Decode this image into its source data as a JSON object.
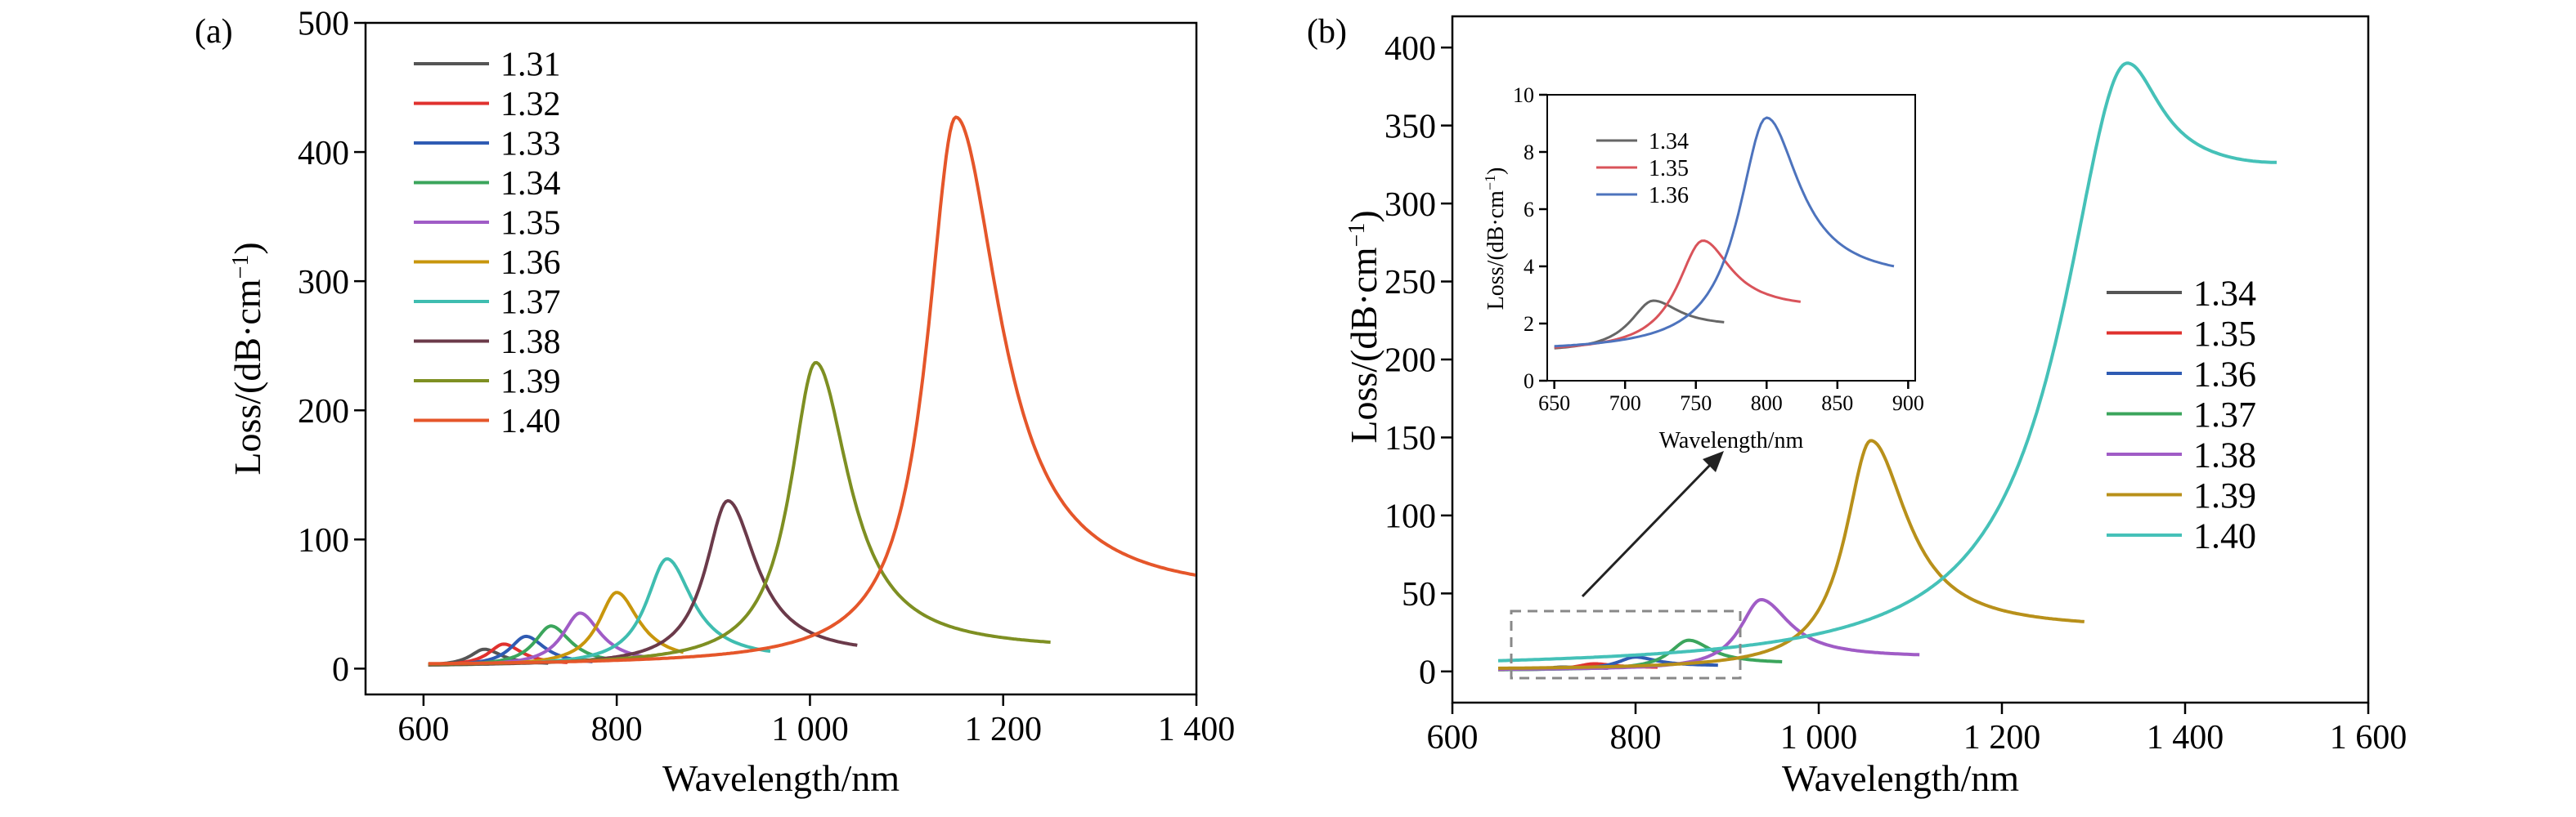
{
  "chart_data": [
    {
      "panel_label": "(a)",
      "type": "line",
      "xlabel": "Wavelength/nm",
      "ylabel_main": "Loss/(dB·cm",
      "ylabel_sup": "−1",
      "ylabel_close": ")",
      "xlim": [
        540,
        1400
      ],
      "ylim": [
        -20,
        500
      ],
      "xticks": [
        600,
        800,
        1000,
        1200,
        1400
      ],
      "xtick_labels": [
        "600",
        "800",
        "1 000",
        "1 200",
        "1 400"
      ],
      "yticks": [
        0,
        100,
        200,
        300,
        400,
        500
      ],
      "ytick_labels": [
        "0",
        "100",
        "200",
        "300",
        "400",
        "500"
      ],
      "legend_position": "top-left",
      "series": [
        {
          "name": "1.31",
          "color": "#555555",
          "peak_x": 663,
          "peak_y": 15,
          "x_start": 605,
          "x_end": 730,
          "base": 2,
          "width_left": 18,
          "width_right": 22,
          "tail": 3
        },
        {
          "name": "1.32",
          "color": "#e0312e",
          "peak_x": 683,
          "peak_y": 19,
          "x_start": 605,
          "x_end": 750,
          "base": 2,
          "width_left": 19,
          "width_right": 23,
          "tail": 3
        },
        {
          "name": "1.33",
          "color": "#2f5bb3",
          "peak_x": 706,
          "peak_y": 25,
          "x_start": 605,
          "x_end": 775,
          "base": 2,
          "width_left": 20,
          "width_right": 24,
          "tail": 3
        },
        {
          "name": "1.34",
          "color": "#3ba55c",
          "peak_x": 732,
          "peak_y": 33,
          "x_start": 605,
          "x_end": 800,
          "base": 2,
          "width_left": 21,
          "width_right": 25,
          "tail": 3
        },
        {
          "name": "1.35",
          "color": "#a05cc6",
          "peak_x": 762,
          "peak_y": 43,
          "x_start": 605,
          "x_end": 830,
          "base": 2,
          "width_left": 22,
          "width_right": 26,
          "tail": 4
        },
        {
          "name": "1.36",
          "color": "#c8960c",
          "peak_x": 800,
          "peak_y": 59,
          "x_start": 605,
          "x_end": 870,
          "base": 2,
          "width_left": 23,
          "width_right": 28,
          "tail": 5
        },
        {
          "name": "1.37",
          "color": "#3fbdb0",
          "peak_x": 852,
          "peak_y": 85,
          "x_start": 605,
          "x_end": 960,
          "base": 2,
          "width_left": 26,
          "width_right": 32,
          "tail": 7
        },
        {
          "name": "1.38",
          "color": "#6b3a4a",
          "peak_x": 915,
          "peak_y": 130,
          "x_start": 605,
          "x_end": 1050,
          "base": 2,
          "width_left": 28,
          "width_right": 36,
          "tail": 10
        },
        {
          "name": "1.39",
          "color": "#7e8f22",
          "peak_x": 1006,
          "peak_y": 237,
          "x_start": 605,
          "x_end": 1250,
          "base": 2,
          "width_left": 32,
          "width_right": 42,
          "tail": 14
        },
        {
          "name": "1.40",
          "color": "#e5562a",
          "peak_x": 1151,
          "peak_y": 427,
          "x_start": 605,
          "x_end": 1400,
          "base": 2,
          "width_left": 36,
          "width_right": 55,
          "tail": 55
        }
      ]
    },
    {
      "panel_label": "(b)",
      "type": "line",
      "xlabel": "Wavelength/nm",
      "ylabel_main": "Loss/(dB·cm",
      "ylabel_sup": "−1",
      "ylabel_close": ")",
      "xlim": [
        600,
        1600
      ],
      "ylim": [
        -20,
        420
      ],
      "xticks": [
        600,
        800,
        1000,
        1200,
        1400,
        1600
      ],
      "xtick_labels": [
        "600",
        "800",
        "1 000",
        "1 200",
        "1 400",
        "1 600"
      ],
      "yticks": [
        0,
        50,
        100,
        150,
        200,
        250,
        300,
        350,
        400
      ],
      "ytick_labels": [
        "0",
        "50",
        "100",
        "150",
        "200",
        "250",
        "300",
        "350",
        "400"
      ],
      "legend_position": "right",
      "series": [
        {
          "name": "1.34",
          "color": "#555555",
          "peak_x": 720,
          "peak_y": 2.8,
          "x_start": 650,
          "x_end": 770,
          "base": 1,
          "width_left": 20,
          "width_right": 22,
          "tail": 1.9
        },
        {
          "name": "1.35",
          "color": "#e0312e",
          "peak_x": 755,
          "peak_y": 4.9,
          "x_start": 650,
          "x_end": 825,
          "base": 1,
          "width_left": 22,
          "width_right": 24,
          "tail": 2.5
        },
        {
          "name": "1.36",
          "color": "#2f5bb3",
          "peak_x": 800,
          "peak_y": 9.2,
          "x_start": 650,
          "x_end": 890,
          "base": 1,
          "width_left": 24,
          "width_right": 28,
          "tail": 3.5
        },
        {
          "name": "1.37",
          "color": "#3ba55c",
          "peak_x": 858,
          "peak_y": 20,
          "x_start": 650,
          "x_end": 960,
          "base": 1,
          "width_left": 25,
          "width_right": 30,
          "tail": 5
        },
        {
          "name": "1.38",
          "color": "#a05cc6",
          "peak_x": 937,
          "peak_y": 46,
          "x_start": 650,
          "x_end": 1110,
          "base": 1,
          "width_left": 28,
          "width_right": 38,
          "tail": 9
        },
        {
          "name": "1.39",
          "color": "#b8901a",
          "peak_x": 1057,
          "peak_y": 148,
          "x_start": 650,
          "x_end": 1290,
          "base": 1,
          "width_left": 34,
          "width_right": 48,
          "tail": 27
        },
        {
          "name": "1.40",
          "color": "#45c1b8",
          "peak_x": 1337,
          "peak_y": 390,
          "x_start": 650,
          "x_end": 1500,
          "base": 1,
          "width_left": 85,
          "width_right": 45,
          "tail": 320,
          "upturn": true
        }
      ],
      "inset": {
        "xlabel": "Wavelength/nm",
        "ylabel_main": "Loss/(dB·cm",
        "ylabel_sup": "−1",
        "ylabel_close": ")",
        "xlim": [
          645,
          905
        ],
        "ylim": [
          0,
          10
        ],
        "xticks": [
          650,
          700,
          750,
          800,
          850,
          900
        ],
        "xtick_labels": [
          "650",
          "700",
          "750",
          "800",
          "850",
          "900"
        ],
        "yticks": [
          0,
          2,
          4,
          6,
          8,
          10
        ],
        "ytick_labels": [
          "0",
          "2",
          "4",
          "6",
          "8",
          "10"
        ],
        "series_names": [
          "1.34",
          "1.35",
          "1.36"
        ],
        "series_colors": [
          "#666666",
          "#d9535a",
          "#4d73bd"
        ]
      }
    }
  ]
}
